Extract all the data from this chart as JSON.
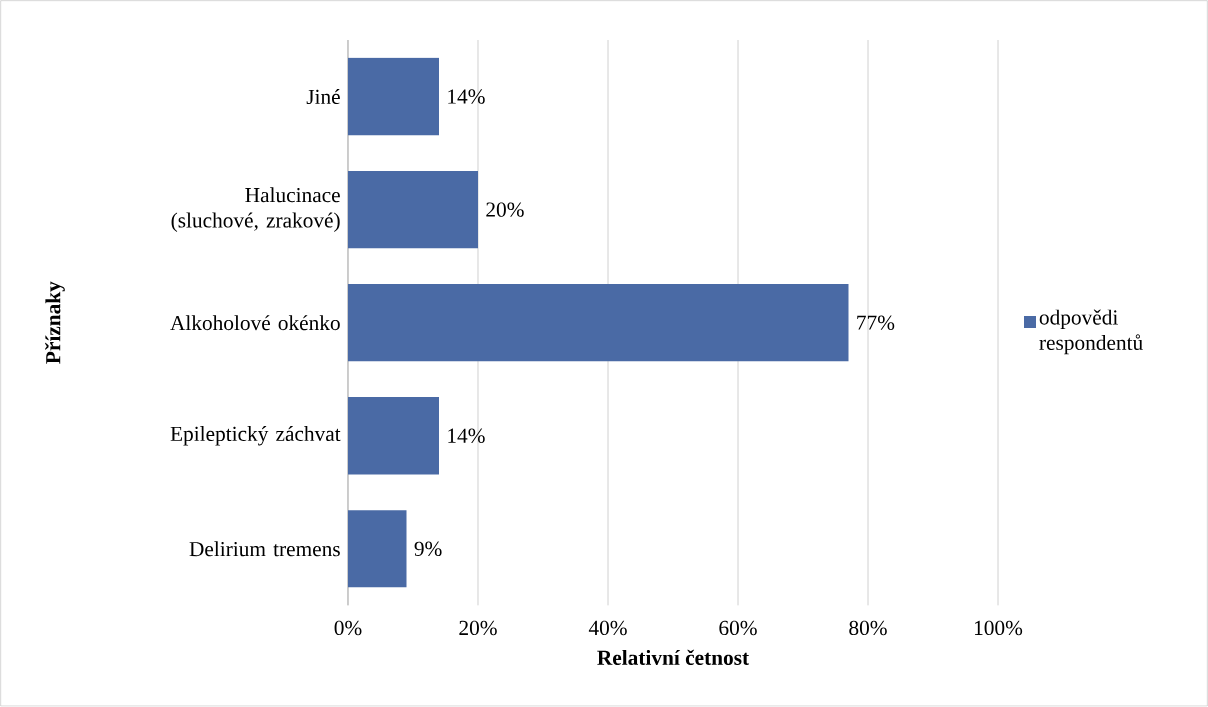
{
  "chart_data": {
    "type": "bar",
    "orientation": "horizontal",
    "categories": [
      "Jiné",
      "Halucinace (sluchové, zrakové)",
      "Alkoholové okénko",
      "Epileptický záchvat",
      "Delirium tremens"
    ],
    "series": [
      {
        "name": "odpovědi respondentů",
        "color": "#4a6aa5",
        "values": [
          14,
          20,
          77,
          14,
          9
        ],
        "value_labels": [
          "14%",
          "20%",
          "77%",
          "14%",
          "9%"
        ]
      }
    ],
    "xlabel": "Relativní četnost",
    "ylabel": "Příznaky",
    "xlim": [
      0,
      100
    ],
    "xticks": [
      {
        "value": 0,
        "label": "0%"
      },
      {
        "value": 20,
        "label": "20%"
      },
      {
        "value": 40,
        "label": "40%"
      },
      {
        "value": 60,
        "label": "60%"
      },
      {
        "value": 80,
        "label": "80%"
      },
      {
        "value": 100,
        "label": "100%"
      }
    ],
    "grid": "x",
    "legend": "right"
  }
}
